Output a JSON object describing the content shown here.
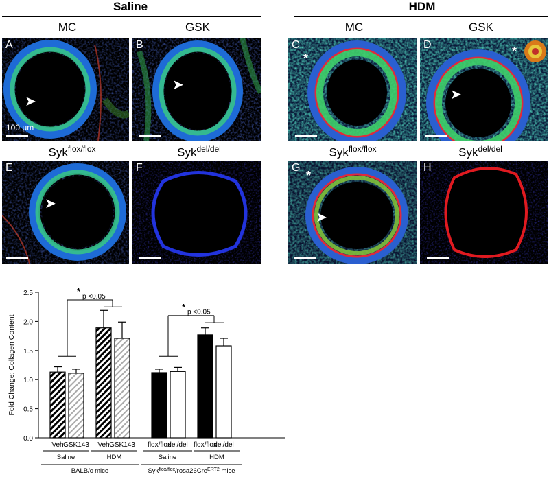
{
  "headers": {
    "saline": "Saline",
    "hdm": "HDM"
  },
  "columns": {
    "mc_left": "MC",
    "gsk_left": "GSK",
    "mc_right": "MC",
    "gsk_right": "GSK",
    "syk_flox": "Syk",
    "syk_flox_sup": "flox/flox",
    "syk_del": "Syk",
    "syk_del_sup": "del/del"
  },
  "panels": {
    "A": "A",
    "B": "B",
    "C": "C",
    "D": "D",
    "E": "E",
    "F": "F",
    "G": "G",
    "H": "H",
    "scale_label": "100 μm",
    "star": "*"
  },
  "chart_data": {
    "type": "bar",
    "ylabel": "Fold Change: Collagen Content",
    "ylim": [
      0.0,
      2.5
    ],
    "yticks": [
      "0.0",
      "0.5",
      "1.0",
      "1.5",
      "2.0",
      "2.5"
    ],
    "categories": [
      "Veh",
      "GSK143",
      "Veh",
      "GSK143",
      "flox/flox",
      "del/del",
      "flox/flox",
      "del/del"
    ],
    "values": [
      1.13,
      1.11,
      1.89,
      1.71,
      1.12,
      1.14,
      1.77,
      1.58
    ],
    "errors": [
      0.09,
      0.07,
      0.3,
      0.28,
      0.06,
      0.07,
      0.12,
      0.13
    ],
    "styles": [
      "hatch-black",
      "hatch-gray",
      "hatch-black",
      "hatch-gray",
      "solid-black",
      "open",
      "solid-black",
      "open"
    ],
    "group_labels": [
      "Saline",
      "HDM",
      "Saline",
      "HDM"
    ],
    "mouse_labels": {
      "balb": "BALB/c mice",
      "syk_main": "Syk",
      "syk_sup": "flox/flox",
      "syk_mid": "/rosa26Cre",
      "syk_sup2": "ERT2",
      "syk_end": " mice"
    },
    "annotations": [
      {
        "star": "*",
        "text": "p <0.05"
      },
      {
        "star": "*",
        "text": "p <0.05"
      }
    ]
  }
}
